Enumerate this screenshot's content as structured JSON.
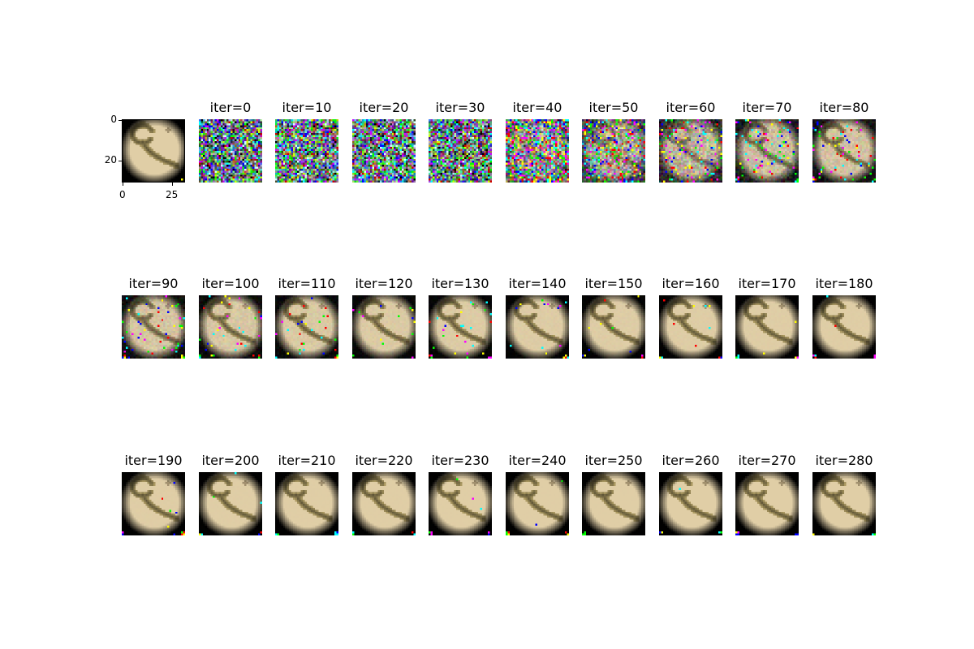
{
  "figure": {
    "reference_axes": {
      "yticks": [
        "0",
        "20"
      ],
      "xticks": [
        "0",
        "25"
      ]
    },
    "panels": [
      {
        "title": "iter=0",
        "noise": 1.0
      },
      {
        "title": "iter=10",
        "noise": 1.0
      },
      {
        "title": "iter=20",
        "noise": 1.0
      },
      {
        "title": "iter=30",
        "noise": 0.97
      },
      {
        "title": "iter=40",
        "noise": 0.78
      },
      {
        "title": "iter=50",
        "noise": 0.55
      },
      {
        "title": "iter=60",
        "noise": 0.35
      },
      {
        "title": "iter=70",
        "noise": 0.22
      },
      {
        "title": "iter=80",
        "noise": 0.15
      },
      {
        "title": "iter=90",
        "noise": 0.12
      },
      {
        "title": "iter=100",
        "noise": 0.09
      },
      {
        "title": "iter=110",
        "noise": 0.07
      },
      {
        "title": "iter=120",
        "noise": 0.05
      },
      {
        "title": "iter=130",
        "noise": 0.04
      },
      {
        "title": "iter=140",
        "noise": 0.03
      },
      {
        "title": "iter=150",
        "noise": 0.025
      },
      {
        "title": "iter=160",
        "noise": 0.02
      },
      {
        "title": "iter=170",
        "noise": 0.015
      },
      {
        "title": "iter=180",
        "noise": 0.012
      },
      {
        "title": "iter=190",
        "noise": 0.01
      },
      {
        "title": "iter=200",
        "noise": 0.008
      },
      {
        "title": "iter=210",
        "noise": 0.006
      },
      {
        "title": "iter=220",
        "noise": 0.005
      },
      {
        "title": "iter=230",
        "noise": 0.004
      },
      {
        "title": "iter=240",
        "noise": 0.003
      },
      {
        "title": "iter=250",
        "noise": 0.003
      },
      {
        "title": "iter=260",
        "noise": 0.002
      },
      {
        "title": "iter=270",
        "noise": 0.002
      },
      {
        "title": "iter=280",
        "noise": 0.002
      }
    ]
  }
}
